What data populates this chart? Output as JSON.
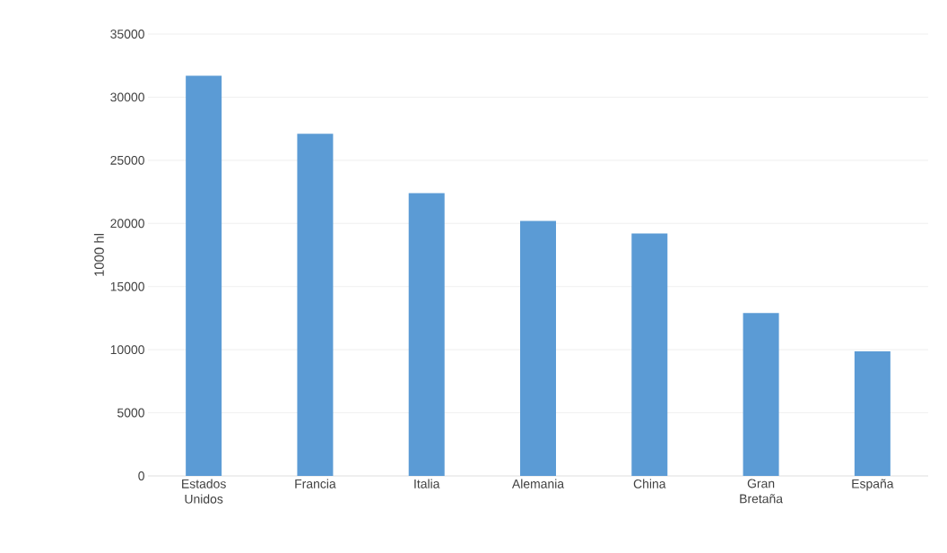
{
  "chart_data": {
    "type": "bar",
    "ylabel": "1000 hl",
    "categories": [
      "Estados Unidos",
      "Francia",
      "Italia",
      "Alemania",
      "China",
      "Gran Bretaña",
      "España"
    ],
    "values": [
      31700,
      27100,
      22400,
      20200,
      19200,
      12900,
      9870
    ],
    "color": "#5b9bd5",
    "ylim": [
      0,
      35000
    ],
    "yticks": [
      0,
      5000,
      10000,
      15000,
      20000,
      25000,
      30000,
      35000
    ],
    "grid": "y"
  }
}
